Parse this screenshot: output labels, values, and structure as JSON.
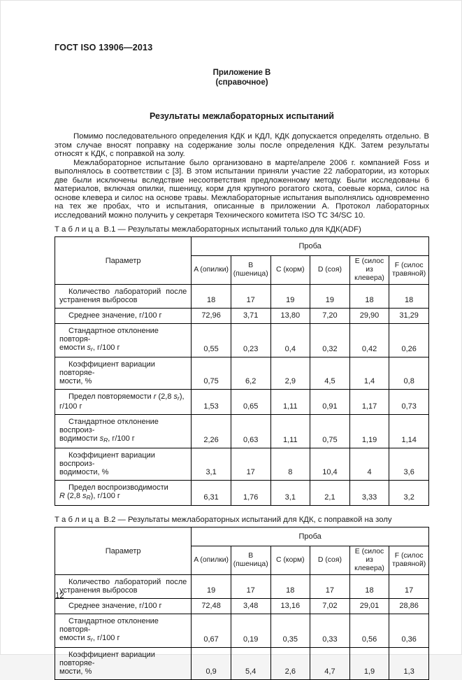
{
  "page": {
    "doc_number": "ГОСТ ISO 13906—2013",
    "appendix_title": "Приложение В",
    "appendix_subtitle": "(справочное)",
    "section_title": "Результаты межлабораторных испытаний",
    "paragraphs": [
      "Помимо последовательного определения КДК и КДЛ, КДК допускается определять отдельно. В этом случае вносят поправку на содержание золы после определения КДК. Затем результаты относят к КДК, с поправкой на золу.",
      "Межлабораторное испытание было организовано в марте/апреле 2006 г. компанией Foss и выполнялось в соответствии с [3]. В этом испытании приняли участие 22 лаборатории, из которых две были исключены вследствие несоответствия предложенному методу. Были исследованы 6 материалов, включая опилки, пшеницу, корм для крупного рогатого скота, соевые корма, силос на основе клевера и силос на основе травы. Межлабораторные испытания выполнялись одновременно на тех же пробах, что и испытания, описанные в приложении А. Протокол лабораторных исследований можно получить у секретаря Технического комитета ISO TC 34/SC 10."
    ],
    "page_number": "12"
  },
  "tables": [
    {
      "caption_label": "Т а б л и ц а  В.1",
      "caption_text": "— Результаты межлабораторных испытаний только для КДК(ADF)",
      "param_header": "Параметр",
      "group_header": "Проба",
      "columns": [
        "A (опилки)",
        "B (пшеница)",
        "C (корм)",
        "D (соя)",
        "E (силос из клевера)",
        "F (силос травяной)"
      ],
      "rows": [
        {
          "label": [
            {
              "t": "Количество лабораторий после",
              "j": true
            },
            {
              "t": "устранения выбросов"
            }
          ],
          "values": [
            "18",
            "17",
            "19",
            "19",
            "18",
            "18"
          ]
        },
        {
          "label": [
            {
              "t": "Среднее значение, г/100 г"
            }
          ],
          "values": [
            "72,96",
            "3,71",
            "13,80",
            "7,20",
            "29,90",
            "31,29"
          ]
        },
        {
          "label": [
            {
              "t": "Стандартное отклонение повторя-"
            },
            {
              "br": true
            },
            {
              "t": "емости "
            },
            {
              "t": "s",
              "i": true
            },
            {
              "t": "r",
              "i": true,
              "s": true
            },
            {
              "t": ", г/100 г"
            }
          ],
          "values": [
            "0,55",
            "0,23",
            "0,4",
            "0,32",
            "0,42",
            "0,26"
          ]
        },
        {
          "label": [
            {
              "t": "Коэффициент вариации повторяе-"
            },
            {
              "br": true
            },
            {
              "t": "мости, %"
            }
          ],
          "values": [
            "0,75",
            "6,2",
            "2,9",
            "4,5",
            "1,4",
            "0,8"
          ]
        },
        {
          "label": [
            {
              "t": "Предел повторяемости "
            },
            {
              "t": "r",
              "i": true
            },
            {
              "t": " (2,8 "
            },
            {
              "t": "s",
              "i": true
            },
            {
              "t": "r",
              "i": true,
              "s": true
            },
            {
              "t": "),"
            },
            {
              "br": true
            },
            {
              "t": "г/100 г"
            }
          ],
          "values": [
            "1,53",
            "0,65",
            "1,11",
            "0,91",
            "1,17",
            "0,73"
          ]
        },
        {
          "label": [
            {
              "t": "Стандартное отклонение воспроиз-"
            },
            {
              "br": true
            },
            {
              "t": "водимости "
            },
            {
              "t": "s",
              "i": true
            },
            {
              "t": "R",
              "i": true,
              "s": true
            },
            {
              "t": ", г/100 г"
            }
          ],
          "values": [
            "2,26",
            "0,63",
            "1,11",
            "0,75",
            "1,19",
            "1,14"
          ]
        },
        {
          "label": [
            {
              "t": "Коэффициент вариации воспроиз-"
            },
            {
              "br": true
            },
            {
              "t": "водимости, %"
            }
          ],
          "values": [
            "3,1",
            "17",
            "8",
            "10,4",
            "4",
            "3,6"
          ]
        },
        {
          "label": [
            {
              "t": "Предел воспроизводимости"
            },
            {
              "br": true
            },
            {
              "t": "R",
              "i": true
            },
            {
              "t": " (2,8 "
            },
            {
              "t": "s",
              "i": true
            },
            {
              "t": "R",
              "i": true,
              "s": true
            },
            {
              "t": "), г/100 г"
            }
          ],
          "values": [
            "6,31",
            "1,76",
            "3,1",
            "2,1",
            "3,33",
            "3,2"
          ]
        }
      ]
    },
    {
      "caption_label": "Т а б л и ц а  В.2",
      "caption_text": "— Результаты межлабораторных испытаний для КДК, с поправкой на золу",
      "param_header": "Параметр",
      "group_header": "Проба",
      "columns": [
        "A (опилки)",
        "B (пшеница)",
        "C (корм)",
        "D (соя)",
        "E (силос из клевера)",
        "F (силос травяной)"
      ],
      "rows": [
        {
          "label": [
            {
              "t": "Количество лабораторий после",
              "j": true
            },
            {
              "t": "устранения выбросов"
            }
          ],
          "values": [
            "19",
            "17",
            "18",
            "17",
            "18",
            "17"
          ]
        },
        {
          "label": [
            {
              "t": "Среднее значение, г/100 г"
            }
          ],
          "values": [
            "72,48",
            "3,48",
            "13,16",
            "7,02",
            "29,01",
            "28,86"
          ]
        },
        {
          "label": [
            {
              "t": "Стандартное отклонение повторя-"
            },
            {
              "br": true
            },
            {
              "t": "емости "
            },
            {
              "t": "s",
              "i": true
            },
            {
              "t": "r",
              "i": true,
              "s": true
            },
            {
              "t": ", г/100 г"
            }
          ],
          "values": [
            "0,67",
            "0,19",
            "0,35",
            "0,33",
            "0,56",
            "0,36"
          ]
        },
        {
          "label": [
            {
              "t": "Коэффициент вариации повторяе-"
            },
            {
              "br": true
            },
            {
              "t": "мости, %"
            }
          ],
          "values": [
            "0,9",
            "5,4",
            "2,6",
            "4,7",
            "1,9",
            "1,3"
          ]
        }
      ]
    }
  ]
}
